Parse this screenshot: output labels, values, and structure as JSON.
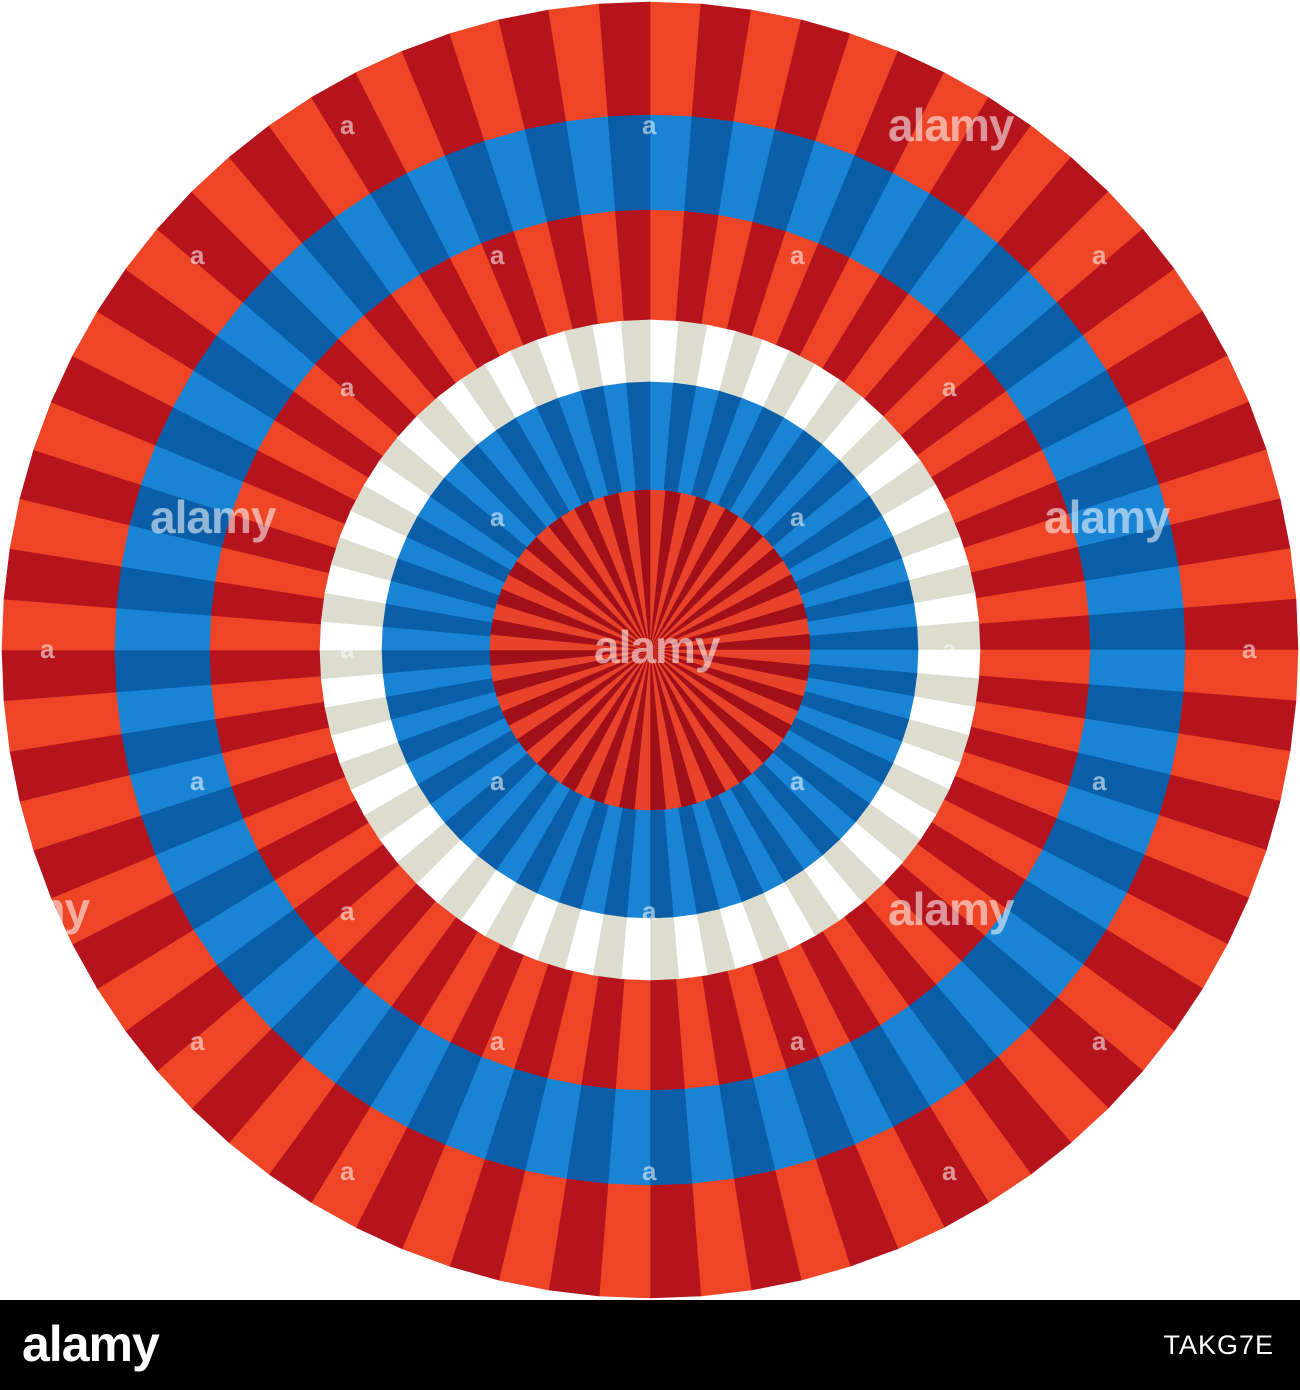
{
  "image": {
    "subject": "rosette",
    "background_color": "#ffffff",
    "ring_colors": {
      "outer_red_light": "#ee4527",
      "outer_red_dark": "#b5141d",
      "blue_light": "#1a84d4",
      "blue_dark": "#0a5ea8",
      "white_light": "#ffffff",
      "white_dark": "#dcdccf",
      "center_red_light": "#e8432a",
      "center_red_dark": "#a10f18"
    }
  },
  "watermark": {
    "text": "alamy",
    "short_text": "a",
    "edge_text": "amy"
  },
  "footer": {
    "logo": "alamy",
    "image_id": "TAKG7E"
  }
}
